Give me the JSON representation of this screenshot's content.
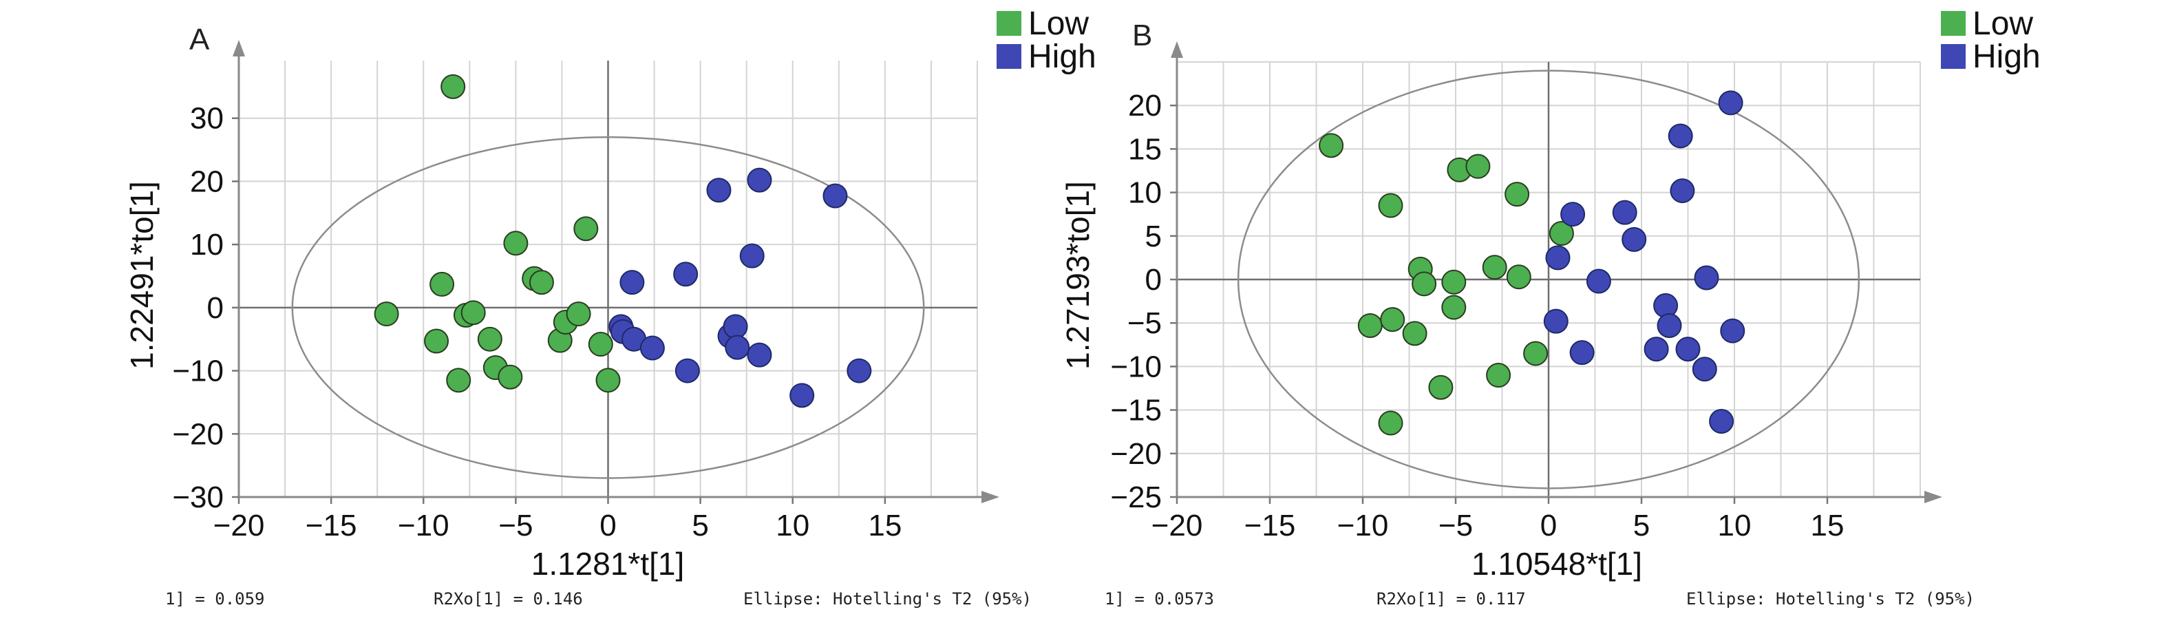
{
  "legend": [
    {
      "label": "Low",
      "color": "#4caf50"
    },
    {
      "label": "High",
      "color": "#3f47b5"
    }
  ],
  "colors": {
    "low": "#4caf50",
    "high": "#3f47b5",
    "stroke": "#2a3d1f",
    "highStroke": "#1e2a66"
  },
  "chart_data": [
    {
      "type": "scatter",
      "panel": "A",
      "xlabel": "1.1281*t[1]",
      "ylabel": "1.22491*to[1]",
      "xlim": [
        -20,
        20
      ],
      "ylim": [
        -30,
        40
      ],
      "xticks": [
        -20,
        -15,
        -10,
        -5,
        0,
        5,
        10,
        15
      ],
      "yticks": [
        -30,
        -20,
        -10,
        0,
        10,
        20,
        30
      ],
      "ellipse": {
        "cx": 0,
        "cy": 0,
        "rx": 17.1,
        "ry": 27
      },
      "grid": true,
      "legend_position": "top-right",
      "footer": [
        "1] = 0.059",
        "R2Xo[1] = 0.146",
        "Ellipse: Hotelling's T2 (95%)"
      ],
      "series": [
        {
          "name": "Low",
          "points": [
            [
              -8.4,
              35
            ],
            [
              -12,
              -1
            ],
            [
              -9.3,
              -5.3
            ],
            [
              -9,
              3.7
            ],
            [
              -8.1,
              -11.5
            ],
            [
              -7.7,
              -1.2
            ],
            [
              -7.3,
              -0.8
            ],
            [
              -6.4,
              -5
            ],
            [
              -6.1,
              -9.5
            ],
            [
              -5.3,
              -11
            ],
            [
              -5,
              10.2
            ],
            [
              -4,
              4.6
            ],
            [
              -3.6,
              4
            ],
            [
              -2.6,
              -5.2
            ],
            [
              -2.3,
              -2.3
            ],
            [
              -1.6,
              -1
            ],
            [
              -1.2,
              12.5
            ],
            [
              -0.4,
              -5.8
            ],
            [
              0,
              -11.5
            ]
          ]
        },
        {
          "name": "High",
          "points": [
            [
              0.7,
              -3
            ],
            [
              0.8,
              -3.8
            ],
            [
              1.3,
              4
            ],
            [
              1.4,
              -5
            ],
            [
              2.4,
              -6.4
            ],
            [
              4.2,
              5.3
            ],
            [
              4.3,
              -10
            ],
            [
              6,
              18.6
            ],
            [
              6.6,
              -4.5
            ],
            [
              6.9,
              -3
            ],
            [
              7,
              -6.3
            ],
            [
              7.8,
              8.2
            ],
            [
              8.2,
              20.2
            ],
            [
              8.2,
              -7.5
            ],
            [
              10.5,
              -13.9
            ],
            [
              12.3,
              17.7
            ],
            [
              13.6,
              -10
            ]
          ]
        }
      ]
    },
    {
      "type": "scatter",
      "panel": "B",
      "xlabel": "1.10548*t[1]",
      "ylabel": "1.27193*to[1]",
      "xlim": [
        -20,
        20
      ],
      "ylim": [
        -25,
        25
      ],
      "xticks": [
        -20,
        -15,
        -10,
        -5,
        0,
        5,
        10,
        15
      ],
      "yticks": [
        -25,
        -20,
        -15,
        -10,
        -5,
        0,
        5,
        10,
        15,
        20
      ],
      "ellipse": {
        "cx": 0,
        "cy": 0,
        "rx": 16.7,
        "ry": 24
      },
      "grid": true,
      "legend_position": "top-right",
      "footer": [
        "1] = 0.0573",
        "R2Xo[1] = 0.117",
        "Ellipse: Hotelling's T2 (95%)"
      ],
      "series": [
        {
          "name": "Low",
          "points": [
            [
              -11.7,
              15.4
            ],
            [
              -9.6,
              -5.3
            ],
            [
              -8.5,
              -16.5
            ],
            [
              -8.5,
              8.5
            ],
            [
              -8.4,
              -4.6
            ],
            [
              -7.2,
              -6.2
            ],
            [
              -6.9,
              1.2
            ],
            [
              -6.7,
              -0.5
            ],
            [
              -5.8,
              -12.4
            ],
            [
              -5.1,
              -3.2
            ],
            [
              -5.1,
              -0.3
            ],
            [
              -4.8,
              12.6
            ],
            [
              -3.8,
              13
            ],
            [
              -2.9,
              1.4
            ],
            [
              -2.7,
              -11
            ],
            [
              -1.7,
              9.8
            ],
            [
              -1.6,
              0.3
            ],
            [
              -0.7,
              -8.5
            ],
            [
              0.7,
              5.3
            ]
          ]
        },
        {
          "name": "High",
          "points": [
            [
              0.4,
              -4.8
            ],
            [
              0.5,
              2.5
            ],
            [
              1.3,
              7.5
            ],
            [
              1.8,
              -8.4
            ],
            [
              2.7,
              -0.2
            ],
            [
              4.1,
              7.7
            ],
            [
              4.6,
              4.6
            ],
            [
              5.8,
              -8
            ],
            [
              6.3,
              -3
            ],
            [
              6.5,
              -5.3
            ],
            [
              7.1,
              16.5
            ],
            [
              7.2,
              10.2
            ],
            [
              7.5,
              -8
            ],
            [
              8.4,
              -10.3
            ],
            [
              8.5,
              0.2
            ],
            [
              9.3,
              -16.3
            ],
            [
              9.8,
              20.3
            ],
            [
              9.9,
              -5.9
            ]
          ]
        }
      ]
    }
  ]
}
